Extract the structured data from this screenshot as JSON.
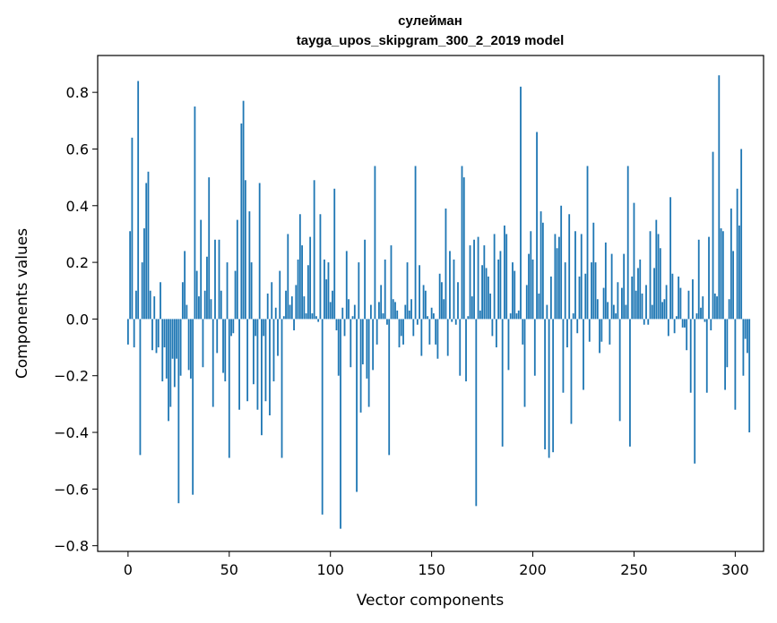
{
  "chart_data": {
    "type": "bar",
    "title_line1": "сулейман",
    "title_line2": "tayga_upos_skipgram_300_2_2019 model",
    "xlabel": "Vector components",
    "ylabel": "Components values",
    "xlim": [
      -15,
      314
    ],
    "ylim": [
      -0.82,
      0.93
    ],
    "x_ticks": [
      0,
      50,
      100,
      150,
      200,
      250,
      300
    ],
    "x_tick_labels": [
      "0",
      "50",
      "100",
      "150",
      "200",
      "250",
      "300"
    ],
    "y_ticks": [
      -0.8,
      -0.6,
      -0.4,
      -0.2,
      0.0,
      0.2,
      0.4,
      0.6,
      0.8
    ],
    "y_tick_labels": [
      "−0.8",
      "−0.6",
      "−0.4",
      "−0.2",
      "0.0",
      "0.2",
      "0.4",
      "0.6",
      "0.8"
    ],
    "bar_color": "#1f77b4",
    "x_start": 0,
    "values": [
      -0.09,
      0.31,
      0.64,
      -0.1,
      0.1,
      0.84,
      -0.48,
      0.2,
      0.32,
      0.48,
      0.52,
      0.1,
      -0.11,
      0.08,
      -0.12,
      -0.1,
      0.13,
      -0.22,
      -0.1,
      -0.21,
      -0.36,
      -0.31,
      -0.14,
      -0.24,
      -0.14,
      -0.65,
      -0.2,
      0.13,
      0.24,
      0.05,
      -0.18,
      -0.21,
      -0.62,
      0.75,
      0.17,
      0.08,
      0.35,
      -0.17,
      0.1,
      0.22,
      0.5,
      0.07,
      -0.31,
      0.28,
      -0.12,
      0.28,
      0.1,
      -0.19,
      -0.22,
      0.2,
      -0.49,
      -0.06,
      -0.05,
      0.17,
      0.35,
      -0.32,
      0.69,
      0.77,
      0.49,
      -0.29,
      0.38,
      0.2,
      -0.23,
      -0.06,
      -0.32,
      0.48,
      -0.41,
      -0.06,
      -0.29,
      0.09,
      -0.34,
      0.13,
      -0.22,
      0.04,
      -0.13,
      0.17,
      -0.49,
      0.01,
      0.1,
      0.3,
      0.05,
      0.08,
      -0.04,
      0.12,
      0.21,
      0.37,
      0.26,
      0.08,
      0.02,
      0.19,
      0.29,
      0.02,
      0.49,
      0.01,
      -0.01,
      0.37,
      -0.69,
      0.21,
      0.14,
      0.2,
      0.06,
      0.1,
      0.46,
      -0.04,
      -0.2,
      -0.74,
      0.04,
      -0.06,
      0.24,
      0.07,
      -0.17,
      0.01,
      0.05,
      -0.61,
      0.2,
      -0.33,
      -0.16,
      0.28,
      -0.21,
      -0.31,
      0.05,
      -0.18,
      0.54,
      -0.09,
      0.06,
      0.12,
      0.02,
      0.21,
      -0.02,
      -0.48,
      0.26,
      0.07,
      0.06,
      0.03,
      -0.1,
      -0.06,
      -0.09,
      0.05,
      0.2,
      0.03,
      0.07,
      -0.06,
      0.54,
      -0.02,
      0.19,
      -0.13,
      0.12,
      0.1,
      0.01,
      -0.09,
      0.04,
      0.02,
      -0.09,
      -0.14,
      0.16,
      0.13,
      0.07,
      0.39,
      -0.13,
      0.24,
      -0.01,
      0.21,
      -0.02,
      0.13,
      -0.2,
      0.54,
      0.5,
      -0.22,
      0.01,
      0.26,
      0.08,
      0.28,
      -0.66,
      0.29,
      0.03,
      0.19,
      0.26,
      0.18,
      0.15,
      0.09,
      -0.06,
      0.3,
      -0.1,
      0.21,
      0.24,
      -0.45,
      0.33,
      0.3,
      -0.18,
      0.02,
      0.2,
      0.17,
      0.02,
      0.03,
      0.82,
      -0.09,
      -0.31,
      0.12,
      0.23,
      0.31,
      0.21,
      -0.2,
      0.66,
      0.09,
      0.38,
      0.34,
      -0.46,
      0.05,
      -0.49,
      0.15,
      -0.47,
      0.3,
      0.25,
      0.29,
      0.4,
      -0.26,
      0.2,
      -0.1,
      0.37,
      -0.37,
      0.02,
      0.31,
      -0.05,
      0.15,
      0.3,
      -0.25,
      0.16,
      0.54,
      -0.08,
      0.2,
      0.34,
      0.2,
      0.07,
      -0.12,
      -0.08,
      0.11,
      0.27,
      0.06,
      -0.09,
      0.23,
      0.05,
      0.02,
      0.13,
      -0.36,
      0.11,
      0.23,
      0.05,
      0.54,
      -0.45,
      0.15,
      0.41,
      0.1,
      0.18,
      0.21,
      0.09,
      -0.02,
      0.12,
      -0.02,
      0.31,
      0.05,
      0.18,
      0.35,
      0.3,
      0.25,
      0.06,
      0.07,
      0.12,
      -0.06,
      0.43,
      0.16,
      -0.05,
      0.01,
      0.15,
      0.11,
      -0.03,
      -0.03,
      -0.11,
      0.1,
      -0.26,
      0.14,
      -0.51,
      0.02,
      0.28,
      0.04,
      0.08,
      -0.01,
      -0.26,
      0.29,
      -0.04,
      0.59,
      0.09,
      0.08,
      0.86,
      0.32,
      0.31,
      -0.25,
      -0.17,
      0.07,
      0.39,
      0.24,
      -0.32,
      0.46,
      0.33,
      0.6,
      -0.2,
      -0.07,
      -0.12,
      -0.4
    ]
  }
}
